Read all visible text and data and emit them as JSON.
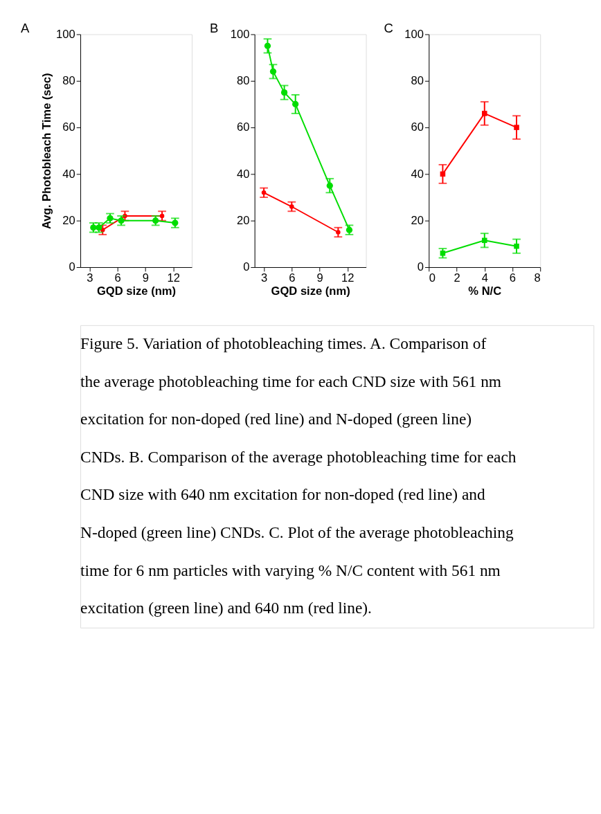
{
  "chart_data": [
    {
      "type": "line",
      "title": "A",
      "xlabel": "GQD size (nm)",
      "ylabel": "Avg. Photobleach Time (sec)",
      "xlim": [
        2,
        14
      ],
      "xticks": [
        3,
        6,
        9,
        12
      ],
      "ylim": [
        0,
        100
      ],
      "yticks": [
        0,
        20,
        40,
        60,
        80,
        100
      ],
      "marker": "circle",
      "grid": false,
      "series": [
        {
          "color": "#ff0000",
          "x": [
            4.4,
            6.8,
            10.8
          ],
          "values": [
            16,
            22,
            22
          ],
          "errors": [
            2,
            2,
            2
          ]
        },
        {
          "color": "#00dd00",
          "x": [
            3.4,
            4.0,
            5.2,
            6.4,
            10.1,
            12.2
          ],
          "values": [
            17,
            17,
            21,
            20,
            20,
            19
          ],
          "errors": [
            2,
            2,
            2,
            2,
            2,
            2
          ]
        }
      ],
      "annotations": [
        "Figure 5. Variation of photobleaching times. A. Comparison of the average photobleaching time for each CND size with 561 nm excitation for non-doped (red line) and N-doped (green line) CNDs. B. Comparison of the average photobleaching time for each CND size with 640 nm excitation for non-doped (red line) and N-doped (green line) CNDs. C. Plot of the average photobleaching time for 6 nm particles with varying % N/C content with 561 nm excitation (green line) and 640 nm (red line)."
      ]
    },
    {
      "type": "line",
      "title": "B",
      "xlabel": "GQD size (nm)",
      "xlim": [
        2,
        14
      ],
      "xticks": [
        3,
        6,
        9,
        12
      ],
      "ylim": [
        0,
        100
      ],
      "yticks": [
        0,
        20,
        40,
        60,
        80,
        100
      ],
      "marker": "circle",
      "grid": false,
      "series": [
        {
          "color": "#ff0000",
          "x": [
            3.0,
            6.0,
            11.0
          ],
          "values": [
            32,
            26,
            15
          ],
          "errors": [
            2,
            2,
            2
          ]
        },
        {
          "color": "#00dd00",
          "x": [
            3.4,
            4.0,
            5.2,
            6.4,
            10.1,
            12.2
          ],
          "values": [
            95,
            84,
            75,
            70,
            35,
            16
          ],
          "errors": [
            3,
            3,
            3,
            4,
            3,
            2
          ]
        }
      ]
    },
    {
      "type": "line",
      "title": "C",
      "xlabel": "% N/C",
      "xlim": [
        0,
        8
      ],
      "xticks": [
        0,
        2,
        4,
        6,
        8
      ],
      "ylim": [
        0,
        100
      ],
      "yticks": [
        0,
        20,
        40,
        60,
        80,
        100
      ],
      "marker": "square",
      "grid": false,
      "series": [
        {
          "color": "#ff0000",
          "x": [
            1.0,
            4.0,
            6.3
          ],
          "values": [
            40,
            66,
            60
          ],
          "errors": [
            4,
            5,
            5
          ]
        },
        {
          "color": "#00dd00",
          "x": [
            1.0,
            4.0,
            6.3
          ],
          "values": [
            6,
            11.5,
            9
          ],
          "errors": [
            2,
            3,
            3
          ]
        }
      ]
    }
  ]
}
